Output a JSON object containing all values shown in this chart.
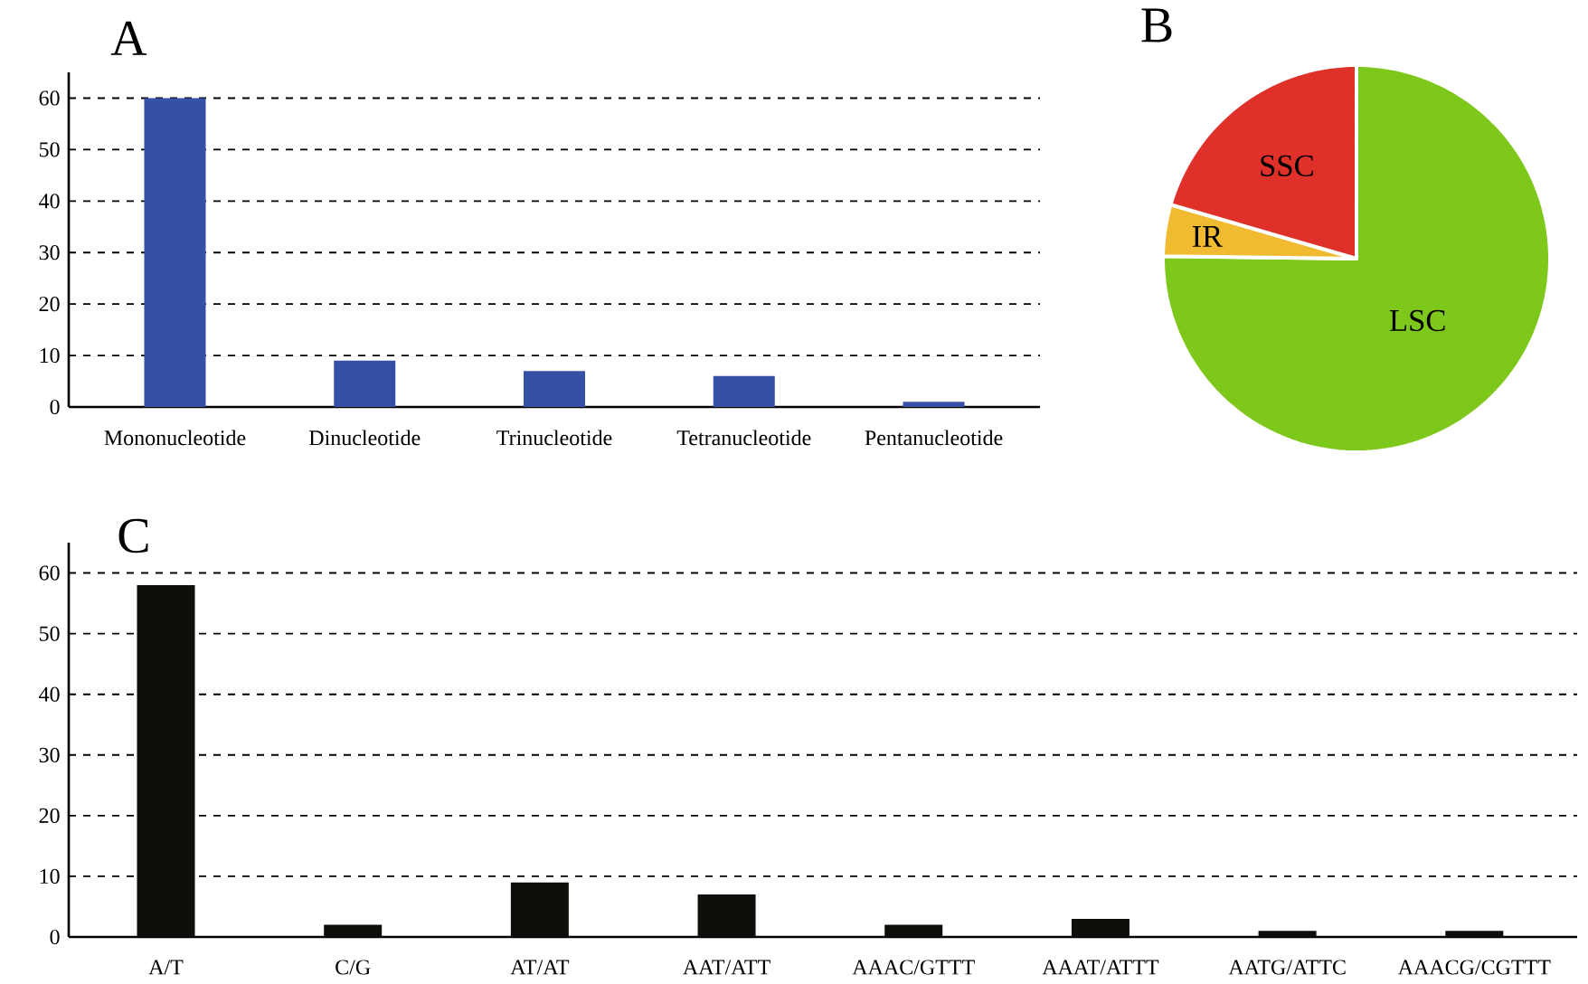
{
  "chart_data": [
    {
      "type": "bar",
      "title": "A",
      "categories": [
        "Mononucleotide",
        "Dinucleotide",
        "Trinucleotide",
        "Tetranucleotide",
        "Pentanucleotide"
      ],
      "values": [
        60,
        9,
        7,
        6,
        1
      ],
      "color": "#3650a8",
      "ylim": [
        0,
        65
      ],
      "yticks": [
        0,
        10,
        20,
        30,
        40,
        50,
        60
      ],
      "grid": "y"
    },
    {
      "type": "pie",
      "title": "B",
      "categories": [
        "LSC",
        "IR",
        "SSC"
      ],
      "values": [
        75.2,
        4.3,
        20.5
      ],
      "colors": [
        "#7ec81c",
        "#f0bb30",
        "#e0302a"
      ]
    },
    {
      "type": "bar",
      "title": "C",
      "categories": [
        "A/T",
        "C/G",
        "AT/AT",
        "AAT/ATT",
        "AAAC/GTTT",
        "AAAT/ATTT",
        "AATG/ATTC",
        "AAACG/CGTTT"
      ],
      "values": [
        58,
        2,
        9,
        7,
        2,
        3,
        1,
        1
      ],
      "color": "#0d0f0a",
      "ylim": [
        0,
        65
      ],
      "yticks": [
        0,
        10,
        20,
        30,
        40,
        50,
        60
      ],
      "grid": "y"
    }
  ]
}
